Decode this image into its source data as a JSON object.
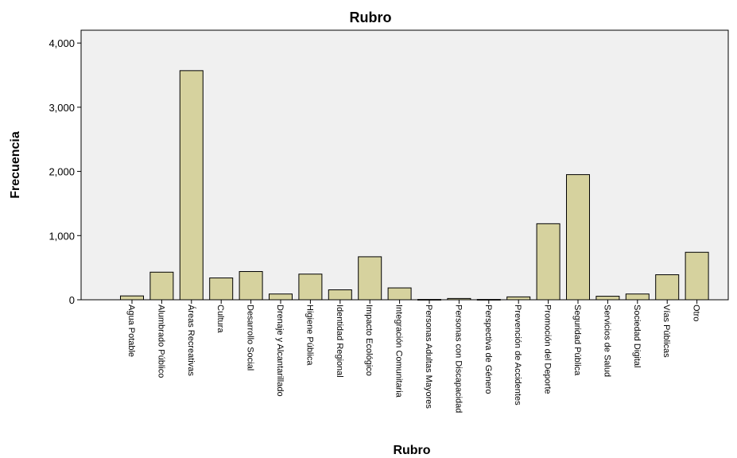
{
  "chart_data": {
    "type": "bar",
    "title": "Rubro",
    "xlabel": "Rubro",
    "ylabel": "Frecuencia",
    "ylim": [
      0,
      4200
    ],
    "yticks": [
      0,
      1000,
      2000,
      3000,
      4000
    ],
    "ytick_labels": [
      "0",
      "1,000",
      "2,000",
      "3,000",
      "4,000"
    ],
    "grid": false,
    "legend": "none",
    "bar_color": "#d6d29e",
    "bar_edge_color": "#000000",
    "plot_background": "#f0f0f0",
    "categories": [
      "Agua Potable",
      "Alumbrado Público",
      "Áreas Recreativas",
      "Cultura",
      "Desarrollo Social",
      "Drenaje y Alcantarillado",
      "Higiene Pública",
      "Identidad Regional",
      "Impacto Ecológico",
      "Integración Comunitaria",
      "Personas Adultas Mayores",
      "Personas con Discapacidad",
      "Perspectiva de Género",
      "Prevención de Accidentes",
      "Promoción del Deporte",
      "Seguridad Pública",
      "Servicios de Salud",
      "Sociedad Digital",
      "Vías Públicas",
      "Otro"
    ],
    "values": [
      60,
      430,
      3570,
      340,
      440,
      90,
      400,
      155,
      670,
      185,
      5,
      20,
      5,
      45,
      1185,
      1950,
      55,
      90,
      390,
      740
    ]
  }
}
